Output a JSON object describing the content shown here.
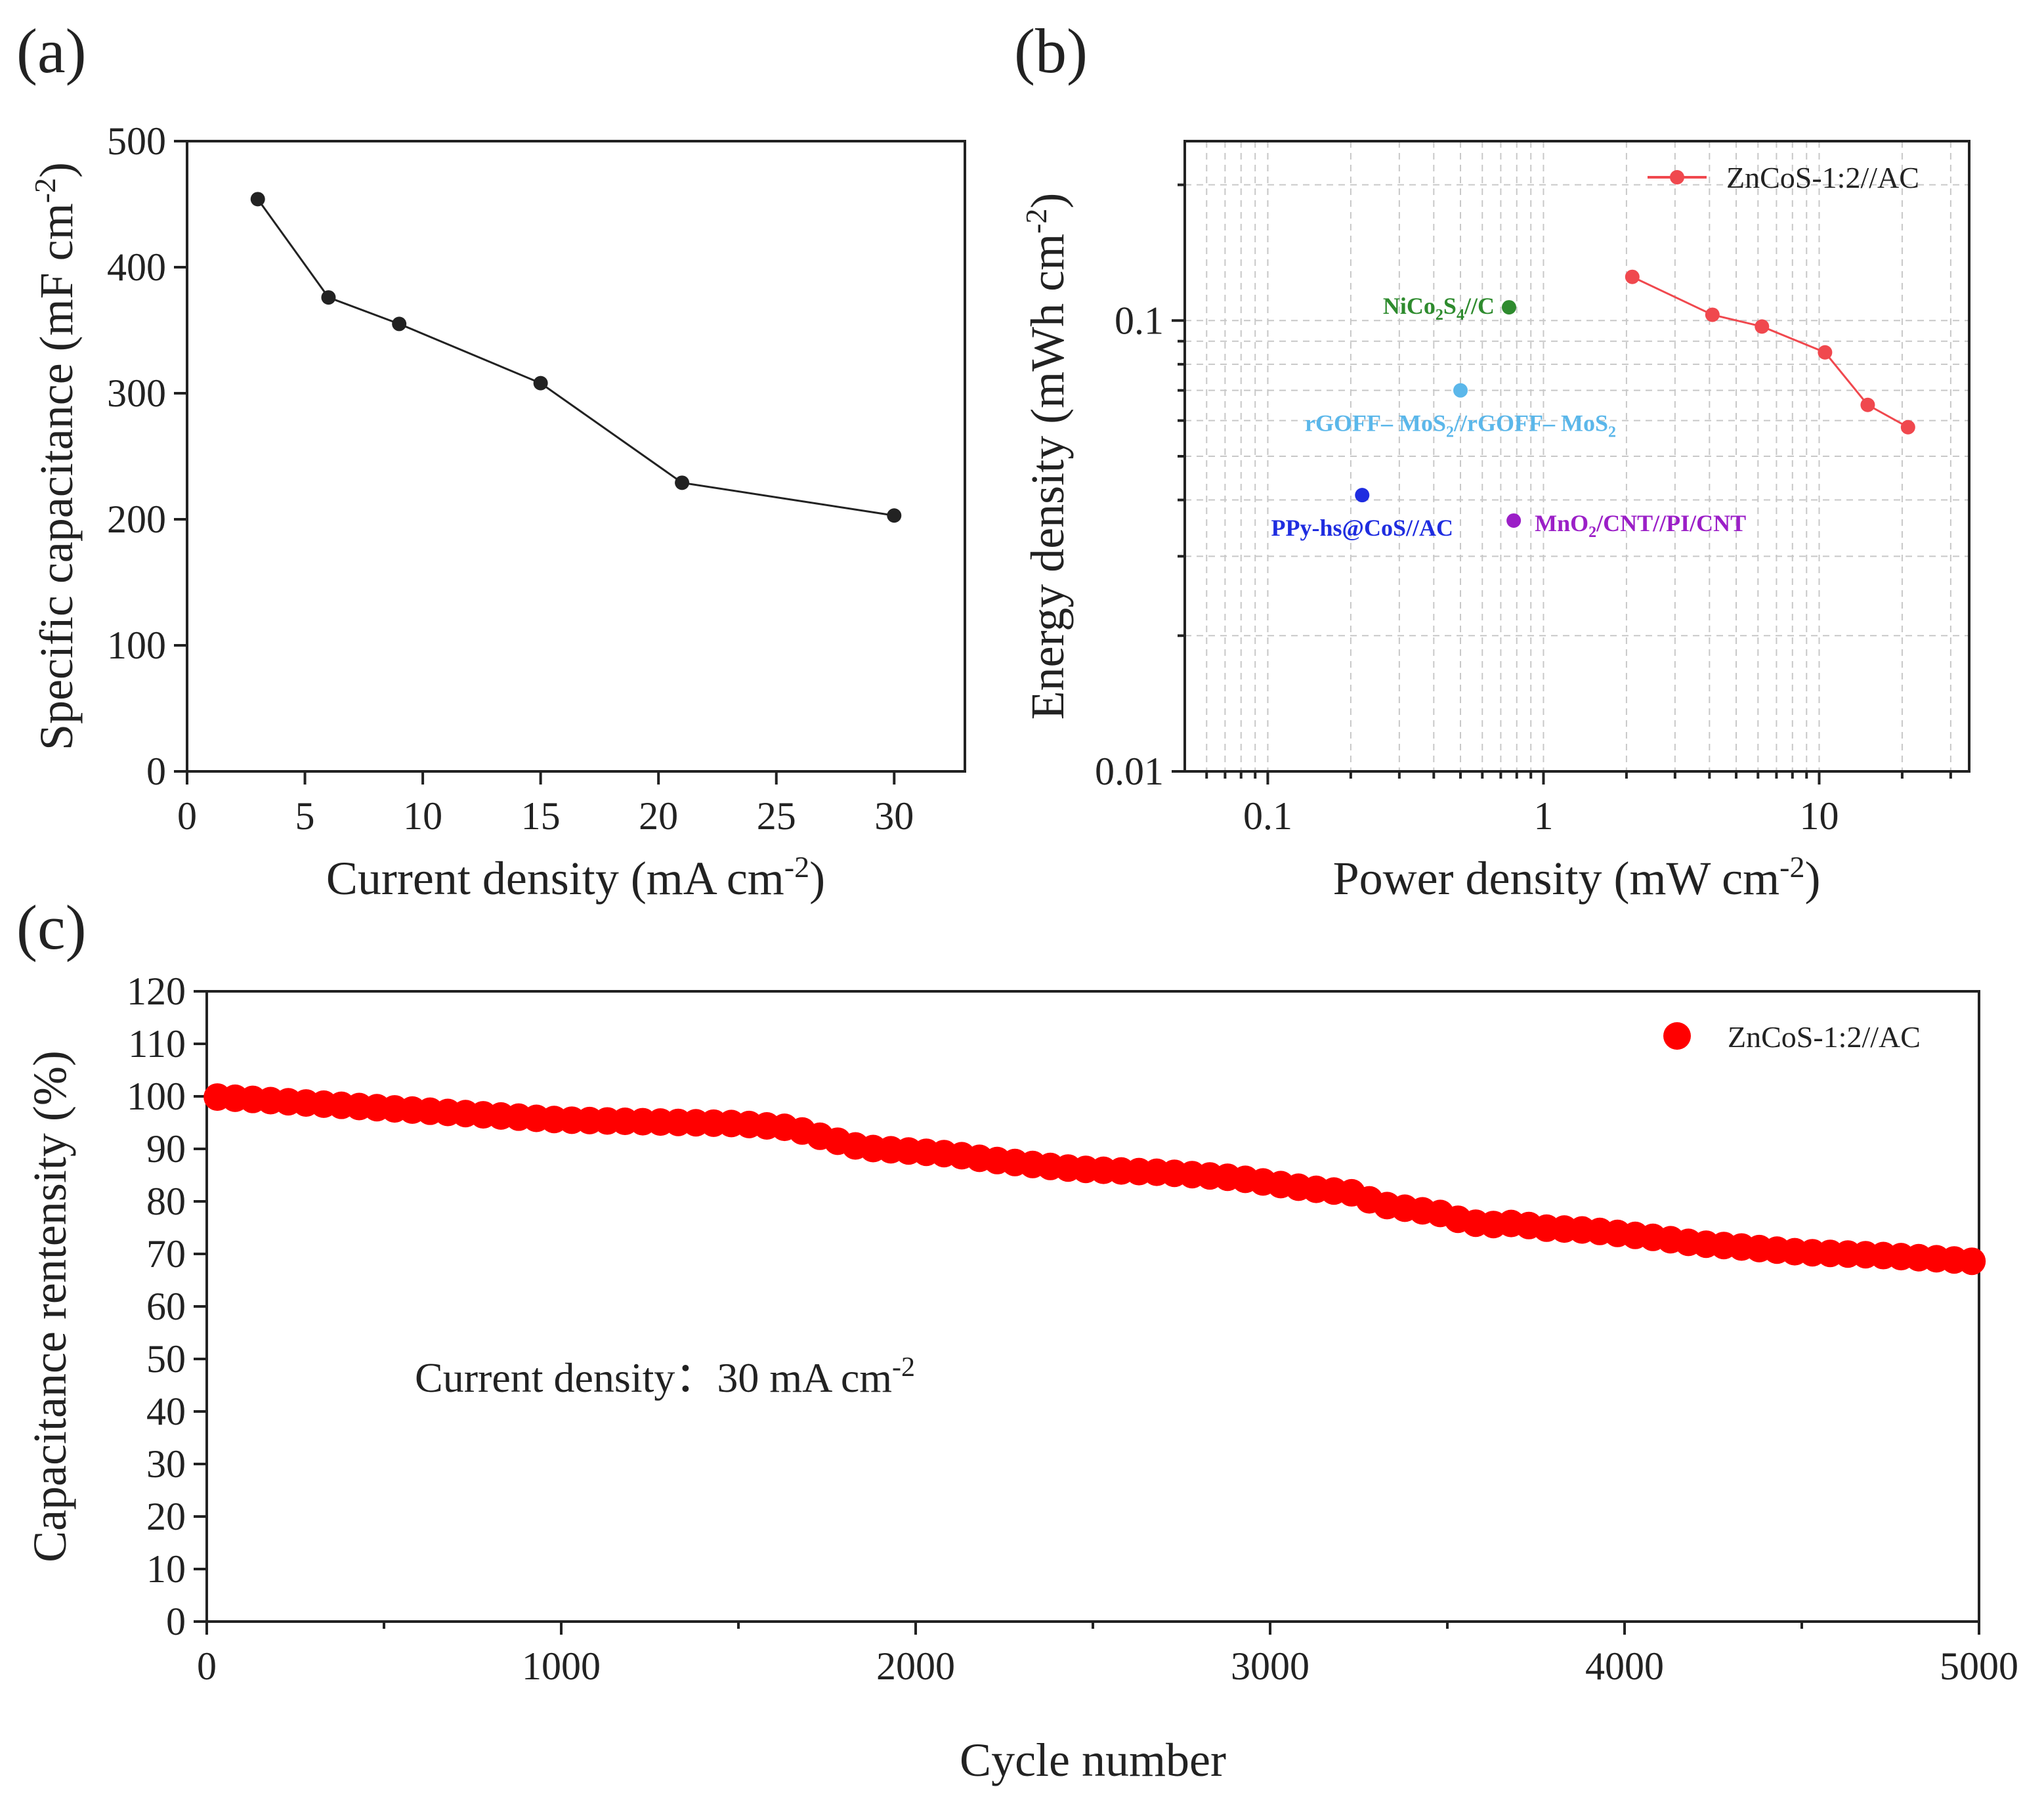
{
  "panels": {
    "a": {
      "label": "(a)"
    },
    "b": {
      "label": "(b)"
    },
    "c": {
      "label": "(c)"
    }
  },
  "chart_data": [
    {
      "id": "a",
      "type": "line",
      "title": "",
      "xlabel": "Current density (mA cm",
      "xlabel_sup": "-2",
      "xlabel_end": ")",
      "ylabel": "Specific capacitance (mF cm",
      "ylabel_sup": "-2",
      "ylabel_end": ")",
      "xlim": [
        0,
        33
      ],
      "ylim": [
        0,
        500
      ],
      "xticks": [
        0,
        5,
        10,
        15,
        20,
        25,
        30
      ],
      "yticks": [
        0,
        100,
        200,
        300,
        400,
        500
      ],
      "series": [
        {
          "name": "",
          "color": "#222222",
          "x": [
            3,
            6,
            9,
            15,
            21,
            30
          ],
          "y": [
            454,
            376,
            355,
            308,
            229,
            203
          ]
        }
      ]
    },
    {
      "id": "b",
      "type": "scatter",
      "scale": "log-log",
      "title": "",
      "xlabel": "Power density (mW cm",
      "xlabel_sup": "-2",
      "xlabel_end": ")",
      "ylabel": "Energy density (mWh cm",
      "ylabel_sup": "-2",
      "ylabel_end": ")",
      "xlim": [
        0.05,
        35
      ],
      "ylim": [
        0.01,
        0.25
      ],
      "xticks": [
        0.1,
        1,
        10
      ],
      "xtick_labels": [
        "0.1",
        "1",
        "10"
      ],
      "yticks": [
        0.01,
        0.1
      ],
      "ytick_labels": [
        "0.01",
        "0.1"
      ],
      "grid": true,
      "legend_position": "top-right",
      "series": [
        {
          "name": "ZnCoS-1:2//AC",
          "color": "#f0484e",
          "line": true,
          "x": [
            2.1,
            4.1,
            6.2,
            10.5,
            15,
            21
          ],
          "y": [
            0.125,
            0.103,
            0.097,
            0.085,
            0.065,
            0.058
          ]
        }
      ],
      "references": [
        {
          "name": "NiCo2S4//C",
          "parts": [
            [
              "NiCo",
              ""
            ],
            [
              "2",
              "sub"
            ],
            [
              "S",
              ""
            ],
            [
              "4",
              "sub"
            ],
            [
              "//C",
              ""
            ]
          ],
          "color": "#2e8b2e",
          "x": 0.75,
          "y": 0.107
        },
        {
          "name": "rGOFF–MoS2//rGOFF–MoS2",
          "parts": [
            [
              "rGOFF– MoS",
              ""
            ],
            [
              "2",
              "sub"
            ],
            [
              "//rGOFF– MoS",
              ""
            ],
            [
              "2",
              "sub"
            ]
          ],
          "color": "#5bb7ea",
          "x": 0.5,
          "y": 0.07
        },
        {
          "name": "PPy-hs@CoS//AC",
          "parts": [
            [
              "PPy-hs@CoS//AC",
              ""
            ]
          ],
          "color": "#1f2de0",
          "x": 0.22,
          "y": 0.041
        },
        {
          "name": "MnO2/CNT//PI/CNT",
          "parts": [
            [
              "MnO",
              ""
            ],
            [
              "2",
              "sub"
            ],
            [
              "/CNT//PI/CNT",
              ""
            ]
          ],
          "color": "#9b1fc7",
          "x": 0.78,
          "y": 0.036
        }
      ]
    },
    {
      "id": "c",
      "type": "scatter",
      "title": "",
      "xlabel": "Cycle number",
      "ylabel": "Capacitance rentensity (%)",
      "xlim": [
        0,
        5000
      ],
      "ylim": [
        0,
        120
      ],
      "xticks": [
        0,
        1000,
        2000,
        3000,
        4000,
        5000
      ],
      "yticks": [
        0,
        10,
        20,
        30,
        40,
        50,
        60,
        70,
        80,
        90,
        100,
        110,
        120
      ],
      "legend_position": "top-right",
      "annotation": "Current density：30 mA cm",
      "annotation_sup": "-2",
      "series": [
        {
          "name": "ZnCoS-1:2//AC",
          "color": "#ff0000",
          "x": [
            0,
            1000,
            1500,
            1650,
            1750,
            1850,
            2000,
            2100,
            2200,
            2400,
            2500,
            2700,
            2900,
            3000,
            3100,
            3250,
            3300,
            3400,
            3500,
            3550,
            3650,
            3700,
            3750,
            3900,
            4100,
            4200,
            4300,
            4500,
            4700,
            4900,
            5000
          ],
          "y": [
            100,
            95.5,
            94.8,
            94,
            92,
            90.2,
            89.5,
            89,
            88,
            86.5,
            86,
            85.5,
            84.5,
            83.5,
            82.5,
            81.5,
            79.5,
            78.5,
            77.5,
            76,
            75.5,
            76,
            75,
            74.5,
            73,
            72,
            71.5,
            70.3,
            69.8,
            69,
            68.5
          ]
        }
      ]
    }
  ]
}
